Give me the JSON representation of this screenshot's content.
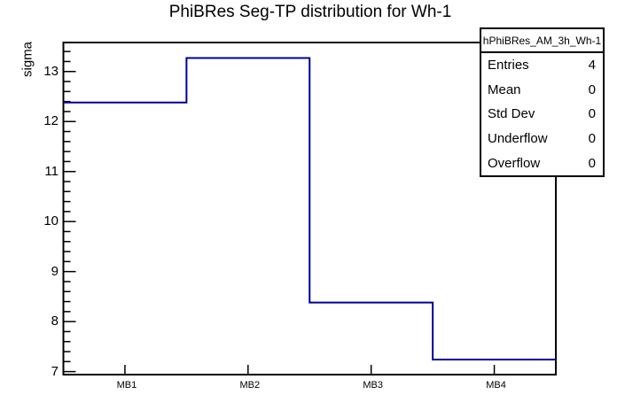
{
  "title": "PhiBRes Seg-TP distribution for Wh-1",
  "y_axis_label": "sigma",
  "stats_box": {
    "header": "hPhiBRes_AM_3h_Wh-1",
    "rows": [
      {
        "label": "Entries",
        "value": "4"
      },
      {
        "label": "Mean",
        "value": "0"
      },
      {
        "label": "Std Dev",
        "value": "0"
      },
      {
        "label": "Underflow",
        "value": "0"
      },
      {
        "label": "Overflow",
        "value": "0"
      }
    ]
  },
  "chart_data": {
    "type": "step-histogram",
    "title": "PhiBRes Seg-TP distribution for Wh-1",
    "categories": [
      "MB1",
      "MB2",
      "MB3",
      "MB4"
    ],
    "values": [
      12.38,
      13.27,
      8.38,
      7.24
    ],
    "xlabel": "",
    "ylabel": "sigma",
    "ylim": [
      6.94,
      13.58
    ],
    "y_major_ticks": [
      7,
      8,
      9,
      10,
      11,
      12,
      13
    ],
    "y_minor_step": 0.2,
    "grid": false,
    "legend_position": "none",
    "line_color": "#000099",
    "frame_color": "#000000",
    "background_color": "#ffffff"
  }
}
